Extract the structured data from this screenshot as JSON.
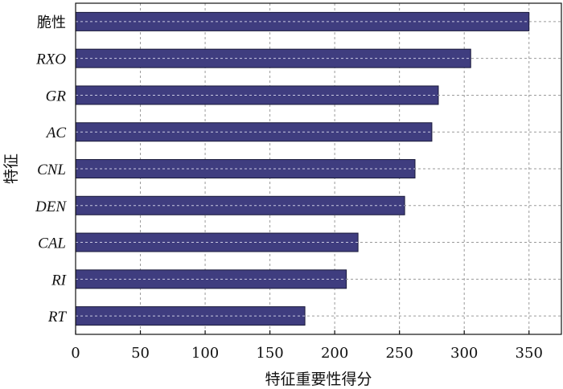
{
  "chart_data": {
    "type": "bar",
    "orientation": "horizontal",
    "categories": [
      "脆性",
      "RXO",
      "GR",
      "AC",
      "CNL",
      "DEN",
      "CAL",
      "RI",
      "RT"
    ],
    "values": [
      350,
      305,
      280,
      275,
      262,
      254,
      218,
      209,
      177
    ],
    "xlabel": "特征重要性得分",
    "ylabel": "特征",
    "xlim": [
      0,
      375
    ],
    "xticks": [
      0,
      50,
      100,
      150,
      200,
      250,
      300,
      350
    ],
    "grid": true,
    "colors": {
      "bar": "#3f3d7f",
      "bar_edge": "#1a1a3a",
      "grid": "#9a9a9a"
    }
  }
}
